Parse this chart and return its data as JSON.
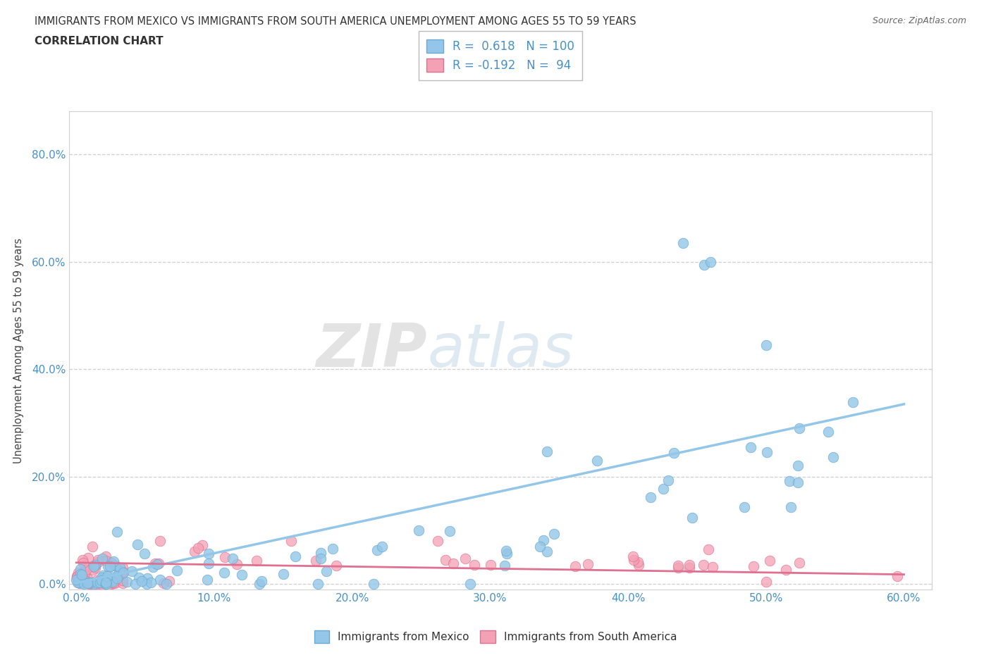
{
  "title_line1": "IMMIGRANTS FROM MEXICO VS IMMIGRANTS FROM SOUTH AMERICA UNEMPLOYMENT AMONG AGES 55 TO 59 YEARS",
  "title_line2": "CORRELATION CHART",
  "source_text": "Source: ZipAtlas.com",
  "xlabel_vals": [
    0.0,
    0.1,
    0.2,
    0.3,
    0.4,
    0.5,
    0.6
  ],
  "ylabel_vals": [
    0.0,
    0.2,
    0.4,
    0.6,
    0.8
  ],
  "xlim": [
    -0.005,
    0.62
  ],
  "ylim": [
    -0.01,
    0.88
  ],
  "mexico_color": "#93C6E8",
  "mexico_edge": "#6AAAD0",
  "sa_color": "#F4A0B5",
  "sa_edge": "#E07090",
  "mexico_R": 0.618,
  "mexico_N": 100,
  "sa_R": -0.192,
  "sa_N": 94,
  "legend_label_mexico": "Immigrants from Mexico",
  "legend_label_sa": "Immigrants from South America",
  "ylabel": "Unemployment Among Ages 55 to 59 years",
  "watermark_zip": "ZIP",
  "watermark_atlas": "atlas",
  "mexico_line_x0": 0.0,
  "mexico_line_x1": 0.6,
  "mexico_line_y0": 0.002,
  "mexico_line_y1": 0.335,
  "sa_line_x0": 0.0,
  "sa_line_x1": 0.6,
  "sa_line_y0": 0.04,
  "sa_line_y1": 0.018,
  "tick_color": "#4A90C4",
  "grid_color": "#D0D0D0",
  "spine_color": "#D0D0D0"
}
